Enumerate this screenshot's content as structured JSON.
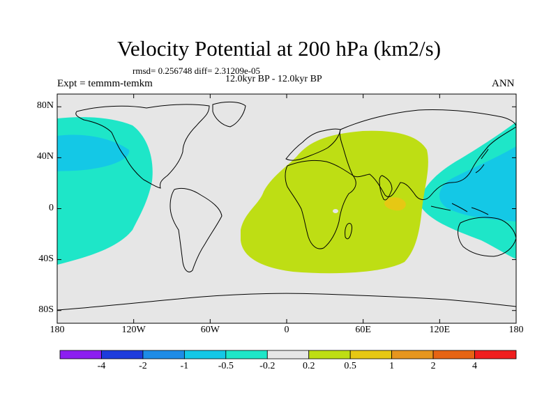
{
  "header": {
    "title": "Velocity Potential at 200 hPa (km2/s)",
    "stats": "rmsd= 0.256748 diff= 2.31209e-05",
    "period": "12.0kyr BP - 12.0kyr BP",
    "experiment": "Expt = temmm-temkm",
    "season": "ANN"
  },
  "axes": {
    "y_ticks": [
      {
        "value": 80,
        "label": "80N"
      },
      {
        "value": 40,
        "label": "40N"
      },
      {
        "value": 0,
        "label": "0"
      },
      {
        "value": -40,
        "label": "40S"
      },
      {
        "value": -80,
        "label": "80S"
      }
    ],
    "x_ticks": [
      {
        "value": -180,
        "label": "180"
      },
      {
        "value": -120,
        "label": "120W"
      },
      {
        "value": -60,
        "label": "60W"
      },
      {
        "value": 0,
        "label": "0"
      },
      {
        "value": 60,
        "label": "60E"
      },
      {
        "value": 120,
        "label": "120E"
      },
      {
        "value": 180,
        "label": "180"
      }
    ]
  },
  "colorbar": {
    "bins": [
      {
        "color": "#8c1ef0",
        "range": "< -4"
      },
      {
        "color": "#1e3cdc",
        "range": "-4 to -2"
      },
      {
        "color": "#1e8ce6",
        "range": "-2 to -1"
      },
      {
        "color": "#14c8e6",
        "range": "-1 to -0.5"
      },
      {
        "color": "#1ee6c8",
        "range": "-0.5 to -0.2"
      },
      {
        "color": "#e6e6e6",
        "range": "-0.2 to 0.2"
      },
      {
        "color": "#bede14",
        "range": "0.2 to 0.5"
      },
      {
        "color": "#e6c814",
        "range": "0.5 to 1"
      },
      {
        "color": "#e6961e",
        "range": "1 to 2"
      },
      {
        "color": "#e66414",
        "range": "2 to 4"
      },
      {
        "color": "#f01e1e",
        "range": "> 4"
      }
    ],
    "labels": [
      "-4",
      "-2",
      "-1",
      "-0.5",
      "-0.2",
      "0.2",
      "0.5",
      "1",
      "2",
      "4"
    ]
  },
  "chart_data": {
    "type": "heatmap",
    "title": "Velocity Potential at 200 hPa (km2/s)",
    "projection": "cylindrical equidistant",
    "xlim": [
      -180,
      180
    ],
    "ylim": [
      -90,
      90
    ],
    "features": [
      {
        "name": "eastern Pacific negative region",
        "value_range": "-0.5 to -0.2"
      },
      {
        "name": "northeast Pacific negative core",
        "value_range": "-1 to -0.5"
      },
      {
        "name": "western Pacific negative region",
        "value_range": "-0.5 to -0.2"
      },
      {
        "name": "western Pacific negative core",
        "value_range": "-1 to -0.5"
      },
      {
        "name": "Africa / Indian Ocean positive region",
        "value_range": "0.2 to 0.5"
      },
      {
        "name": "Indian Ocean positive maximum",
        "value_range": "0.5 to 1"
      }
    ]
  },
  "colors": {
    "background": "#e6e6e6",
    "coastline": "#000000"
  }
}
